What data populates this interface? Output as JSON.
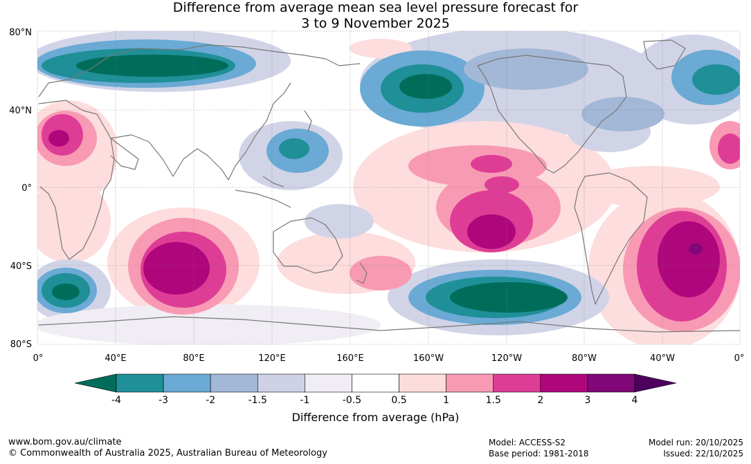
{
  "title": {
    "line1": "Difference from average mean sea level pressure forecast for",
    "line2": "3 to 9 November 2025"
  },
  "map": {
    "lat_labels": [
      "80°N",
      "40°N",
      "0°",
      "40°S",
      "80°S"
    ],
    "lon_labels": [
      "0°",
      "40°E",
      "80°E",
      "120°E",
      "160°E",
      "160°W",
      "120°W",
      "80°W",
      "40°W",
      "0°"
    ],
    "anomaly_regions": [
      {
        "area": "North Atlantic / Europe - Arctic",
        "value": -4
      },
      {
        "area": "North Pacific (Aleutian region)",
        "value": -4
      },
      {
        "area": "Northwest Pacific near Philippines",
        "value": -3
      },
      {
        "area": "Southern Ocean south of South Africa",
        "value": -4
      },
      {
        "area": "South Pacific (south of Pacific)",
        "value": -4
      },
      {
        "area": "Southern Indian Ocean",
        "value": 3
      },
      {
        "area": "Central Pacific (north)",
        "value": 2
      },
      {
        "area": "Southeast Pacific",
        "value": 3
      },
      {
        "area": "South Atlantic",
        "value": 3
      },
      {
        "area": "North Africa / Sahara",
        "value": 2
      }
    ]
  },
  "colorbar": {
    "ticks": [
      "-4",
      "-3",
      "-2",
      "-1.5",
      "-1",
      "-0.5",
      "0.5",
      "1",
      "1.5",
      "2",
      "3",
      "4"
    ],
    "colors": [
      "#006d5b",
      "#1f8f98",
      "#6aaad4",
      "#a3b8d6",
      "#cfd2e6",
      "#f0edf4",
      "#ffffff",
      "#fddcdc",
      "#f89ab4",
      "#de3d96",
      "#b0067c",
      "#800878",
      "#4d005e"
    ],
    "label": "Difference from average (hPa)"
  },
  "footer": {
    "url": "www.bom.gov.au/climate",
    "copyright": "© Commonwealth of Australia 2025, Australian Bureau of Meteorology",
    "model": "Model: ACCESS-S2",
    "base_period": "Base period: 1981-2018",
    "model_run": "Model run: 20/10/2025",
    "issued": "Issued: 22/10/2025"
  }
}
